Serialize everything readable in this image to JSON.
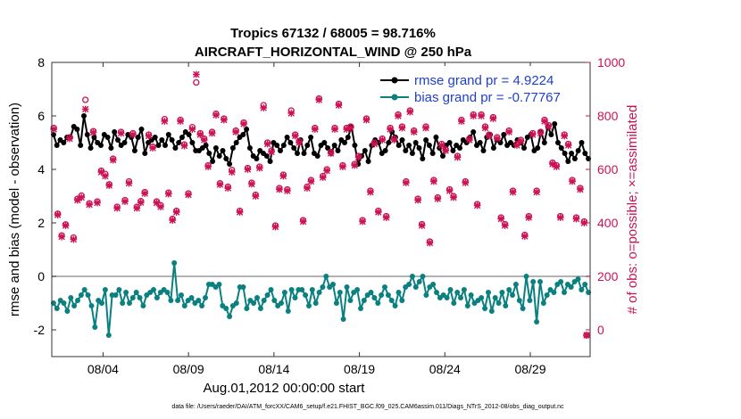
{
  "chart_data": {
    "type": "line",
    "title_line1": "Tropics 67132 / 68005 = 98.716%",
    "title_line2": "AIRCRAFT_HORIZONTAL_WIND @ 250 hPa",
    "xlabel": "Aug.01,2012 00:00:00 start",
    "ylabel_left": "rmse and bias (model - observation)",
    "ylabel_right": "# of obs: o=possible; ×=assimilated",
    "x_start_day": 1,
    "x_end_day": 32.5,
    "x_ticks": [
      {
        "day": 4,
        "label": "08/04"
      },
      {
        "day": 9,
        "label": "08/09"
      },
      {
        "day": 14,
        "label": "08/14"
      },
      {
        "day": 19,
        "label": "08/19"
      },
      {
        "day": 24,
        "label": "08/24"
      },
      {
        "day": 29,
        "label": "08/29"
      }
    ],
    "ylim_left": [
      -3,
      8
    ],
    "yticks_left": [
      "-2",
      "0",
      "2",
      "4",
      "6",
      "8"
    ],
    "ylim_right": [
      -100,
      1000
    ],
    "yticks_right": [
      "0",
      "200",
      "400",
      "600",
      "800",
      "1000"
    ],
    "legend": [
      {
        "name": "rmse grand pr = 4.9224",
        "color": "#000000"
      },
      {
        "name": "bias grand pr = -0.77767",
        "color": "#0a8080"
      }
    ],
    "series": [
      {
        "name": "rmse",
        "color": "#000000",
        "values": [
          5.3,
          4.9,
          5.1,
          5.0,
          5.2,
          5.2,
          5.6,
          5.5,
          4.9,
          6.0,
          5.3,
          4.8,
          5.2,
          5.0,
          4.9,
          5.3,
          5.2,
          4.8,
          5.4,
          5.1,
          4.9,
          5.0,
          5.3,
          5.2,
          4.7,
          5.2,
          5.5,
          4.6,
          5.0,
          5.1,
          5.2,
          4.9,
          5.1,
          4.9,
          5.3,
          5.1,
          4.8,
          5.0,
          5.2,
          5.4,
          5.3,
          5.0,
          4.7,
          4.7,
          4.8,
          4.9,
          4.6,
          4.3,
          4.8,
          4.5,
          4.7,
          4.4,
          4.2,
          4.8,
          5.0,
          5.2,
          5.3,
          5.5,
          4.8,
          4.5,
          4.4,
          4.7,
          4.6,
          4.5,
          4.3,
          5.0,
          4.9,
          4.7,
          4.9,
          5.2,
          5.0,
          4.8,
          4.6,
          5.1,
          4.6,
          4.9,
          5.2,
          4.6,
          4.5,
          4.9,
          5.0,
          4.8,
          4.6,
          4.9,
          4.7,
          5.1,
          5.0,
          5.2,
          5.6,
          4.9,
          4.2,
          4.5,
          4.7,
          4.3,
          4.9,
          5.1,
          5.0,
          4.6,
          4.7,
          5.0,
          5.4,
          5.2,
          4.9,
          5.1,
          4.7,
          4.9,
          4.6,
          5.0,
          4.8,
          4.4,
          5.1,
          4.9,
          4.6,
          5.2,
          4.8,
          4.5,
          4.9,
          5.0,
          4.7,
          4.9,
          4.8,
          5.1,
          5.0,
          5.2,
          5.4,
          4.9,
          5.0,
          4.7,
          5.2,
          5.3,
          4.8,
          5.1,
          5.0,
          5.3,
          4.9,
          5.0,
          4.9,
          5.1,
          5.0,
          4.8,
          5.2,
          5.3,
          4.7,
          4.8,
          5.4,
          5.0,
          5.6,
          5.3,
          5.7,
          5.0,
          4.8,
          4.6,
          4.3,
          4.6,
          4.4,
          4.7,
          5.0,
          4.6,
          4.4
        ],
        "marker": "dot"
      },
      {
        "name": "bias",
        "color": "#0a8080",
        "values": [
          -1.0,
          -1.2,
          -0.9,
          -1.0,
          -1.3,
          -0.8,
          -1.1,
          -0.9,
          -0.7,
          -0.5,
          -0.7,
          -1.1,
          -1.9,
          -0.9,
          -1.0,
          -0.5,
          -2.2,
          -0.7,
          -0.7,
          -0.5,
          -1.0,
          -0.6,
          -1.0,
          -0.8,
          -0.6,
          -0.8,
          -1.1,
          -0.7,
          -0.6,
          -0.5,
          -0.8,
          -0.6,
          -0.5,
          -0.6,
          -0.9,
          0.5,
          -0.9,
          -0.7,
          -1.1,
          -0.9,
          -0.8,
          -1.0,
          -0.9,
          -1.1,
          -0.8,
          -0.3,
          -0.3,
          -0.4,
          -0.3,
          -1.1,
          -1.2,
          -1.5,
          -1.1,
          -1.0,
          -0.4,
          -0.4,
          -1.2,
          -0.9,
          -1.0,
          -0.8,
          -1.2,
          -0.9,
          -0.7,
          -0.5,
          -0.9,
          -1.1,
          -1.0,
          -0.6,
          -1.3,
          -0.5,
          -0.8,
          -0.5,
          -0.5,
          -0.7,
          -1.1,
          -0.5,
          -1.0,
          -0.6,
          -0.4,
          0.0,
          -0.4,
          -0.3,
          -1.0,
          -0.6,
          -1.6,
          -0.4,
          -0.9,
          -0.6,
          -0.5,
          -1.2,
          -0.9,
          -0.7,
          -0.6,
          -0.8,
          -1.0,
          -0.7,
          -0.4,
          -0.7,
          -0.9,
          -1.1,
          -0.6,
          -0.9,
          -0.4,
          -0.3,
          0.0,
          -0.4,
          -0.2,
          0.0,
          -0.7,
          -0.4,
          -0.3,
          -0.6,
          -0.8,
          -0.7,
          -0.8,
          -0.5,
          -1.0,
          -0.6,
          -0.8,
          -0.5,
          -1.1,
          -0.7,
          -1.0,
          -0.9,
          -0.8,
          -1.2,
          -0.6,
          -1.3,
          -0.8,
          -1.0,
          -0.6,
          -1.1,
          -0.5,
          -0.7,
          -0.3,
          -0.9,
          -1.2,
          0.0,
          -0.9,
          -0.2,
          -1.7,
          -0.2,
          -1.0,
          -0.7,
          -0.5,
          -0.6,
          -0.3,
          -0.2,
          -0.6,
          -0.3,
          -0.4,
          -0.2,
          -0.1,
          -0.5,
          -0.3,
          -0.6
        ],
        "marker": "dot"
      },
      {
        "name": "obs possible",
        "color": "#cc1155",
        "marker": "circle",
        "values": [
          755,
          434,
          353,
          394,
          720,
          345,
          490,
          502,
          860,
          473,
          743,
          480,
          595,
          583,
          544,
          640,
          460,
          740,
          485,
          555,
          735,
          460,
          481,
          515,
          730,
          685,
          480,
          466,
          788,
          513,
          415,
          445,
          785,
          693,
          510,
          758,
          925,
          735,
          715,
          615,
          740,
          808,
          548,
          790,
          535,
          598,
          745,
          445,
          775,
          605,
          550,
          505,
          610,
          840,
          700,
          670,
          390,
          530,
          580,
          525,
          820,
          730,
          705,
          410,
          535,
          560,
          755,
          865,
          575,
          600,
          665,
          755,
          845,
          615,
          755,
          760,
          620,
          650,
          410,
          790,
          520,
          700,
          445,
          715,
          425,
          755,
          715,
          805,
          760,
          555,
          820,
          745,
          490,
          395,
          760,
          330,
          560,
          495,
          695,
          675,
          525,
          500,
          650,
          785,
          555,
          715,
          805,
          470,
          805,
          760,
          730,
          795,
          720,
          420,
          395,
          745,
          520,
          695,
          710,
          355,
          425,
          735,
          520,
          740,
          785,
          765,
          625,
          615,
          425,
          730,
          695,
          560,
          420,
          530,
          405,
          -20
        ]
      },
      {
        "name": "obs assimilated",
        "color": "#cc1155",
        "marker": "cross",
        "values": [
          750,
          430,
          348,
          390,
          715,
          338,
          485,
          495,
          825,
          468,
          738,
          475,
          590,
          575,
          540,
          635,
          455,
          735,
          480,
          548,
          730,
          455,
          476,
          510,
          725,
          680,
          475,
          460,
          780,
          508,
          410,
          440,
          780,
          688,
          505,
          750,
          955,
          730,
          710,
          610,
          735,
          803,
          543,
          785,
          530,
          590,
          740,
          440,
          770,
          600,
          545,
          500,
          605,
          830,
          695,
          665,
          385,
          525,
          575,
          520,
          810,
          725,
          700,
          405,
          530,
          555,
          750,
          860,
          570,
          595,
          660,
          750,
          840,
          610,
          750,
          755,
          615,
          645,
          405,
          785,
          515,
          695,
          440,
          710,
          420,
          750,
          710,
          800,
          755,
          550,
          815,
          740,
          485,
          390,
          755,
          325,
          555,
          490,
          690,
          670,
          520,
          495,
          645,
          780,
          550,
          710,
          800,
          465,
          800,
          755,
          725,
          790,
          715,
          415,
          390,
          740,
          515,
          690,
          705,
          350,
          420,
          730,
          515,
          735,
          780,
          760,
          620,
          610,
          420,
          725,
          690,
          555,
          415,
          525,
          400,
          -20
        ]
      }
    ],
    "footer": "data file: /Users/raeder/DAI/ATM_forcXX/CAM6_setup/f.e21.FHIST_BGC.f09_025.CAM6assim.011/Diags_NTrS_2012-08/obs_diag_output.nc"
  }
}
